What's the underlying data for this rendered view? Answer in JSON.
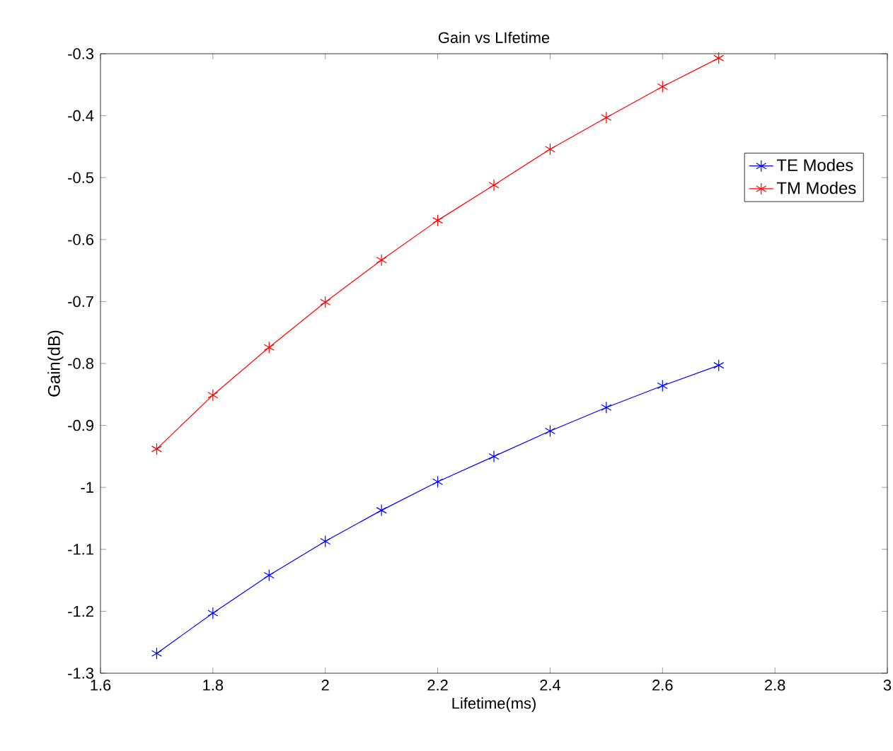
{
  "chart_data": {
    "type": "line",
    "title": "Gain vs LIfetime",
    "xlabel": "Lifetime(ms)",
    "ylabel": "Gain(dB)",
    "x": [
      1.7,
      1.8,
      1.9,
      2.0,
      2.1,
      2.2,
      2.3,
      2.4,
      2.5,
      2.6,
      2.7
    ],
    "series": [
      {
        "name": "TE Modes",
        "color": "#0000ff",
        "values": [
          -1.268,
          -1.203,
          -1.142,
          -1.087,
          -1.037,
          -0.991,
          -0.95,
          -0.909,
          -0.871,
          -0.836,
          -0.803
        ]
      },
      {
        "name": "TM Modes",
        "color": "#ff0000",
        "values": [
          -0.938,
          -0.851,
          -0.774,
          -0.701,
          -0.633,
          -0.569,
          -0.512,
          -0.454,
          -0.403,
          -0.353,
          -0.307
        ]
      }
    ],
    "xlim": [
      1.6,
      3
    ],
    "ylim": [
      -1.3,
      -0.3
    ],
    "xticks": [
      1.6,
      1.8,
      2,
      2.2,
      2.4,
      2.6,
      2.8,
      3
    ],
    "yticks": [
      -1.3,
      -1.2,
      -1.1,
      -1,
      -0.9,
      -0.8,
      -0.7,
      -0.6,
      -0.5,
      -0.4,
      -0.3
    ],
    "grid": false,
    "legend": "top right",
    "marker": "cross",
    "line_style": "solid"
  }
}
